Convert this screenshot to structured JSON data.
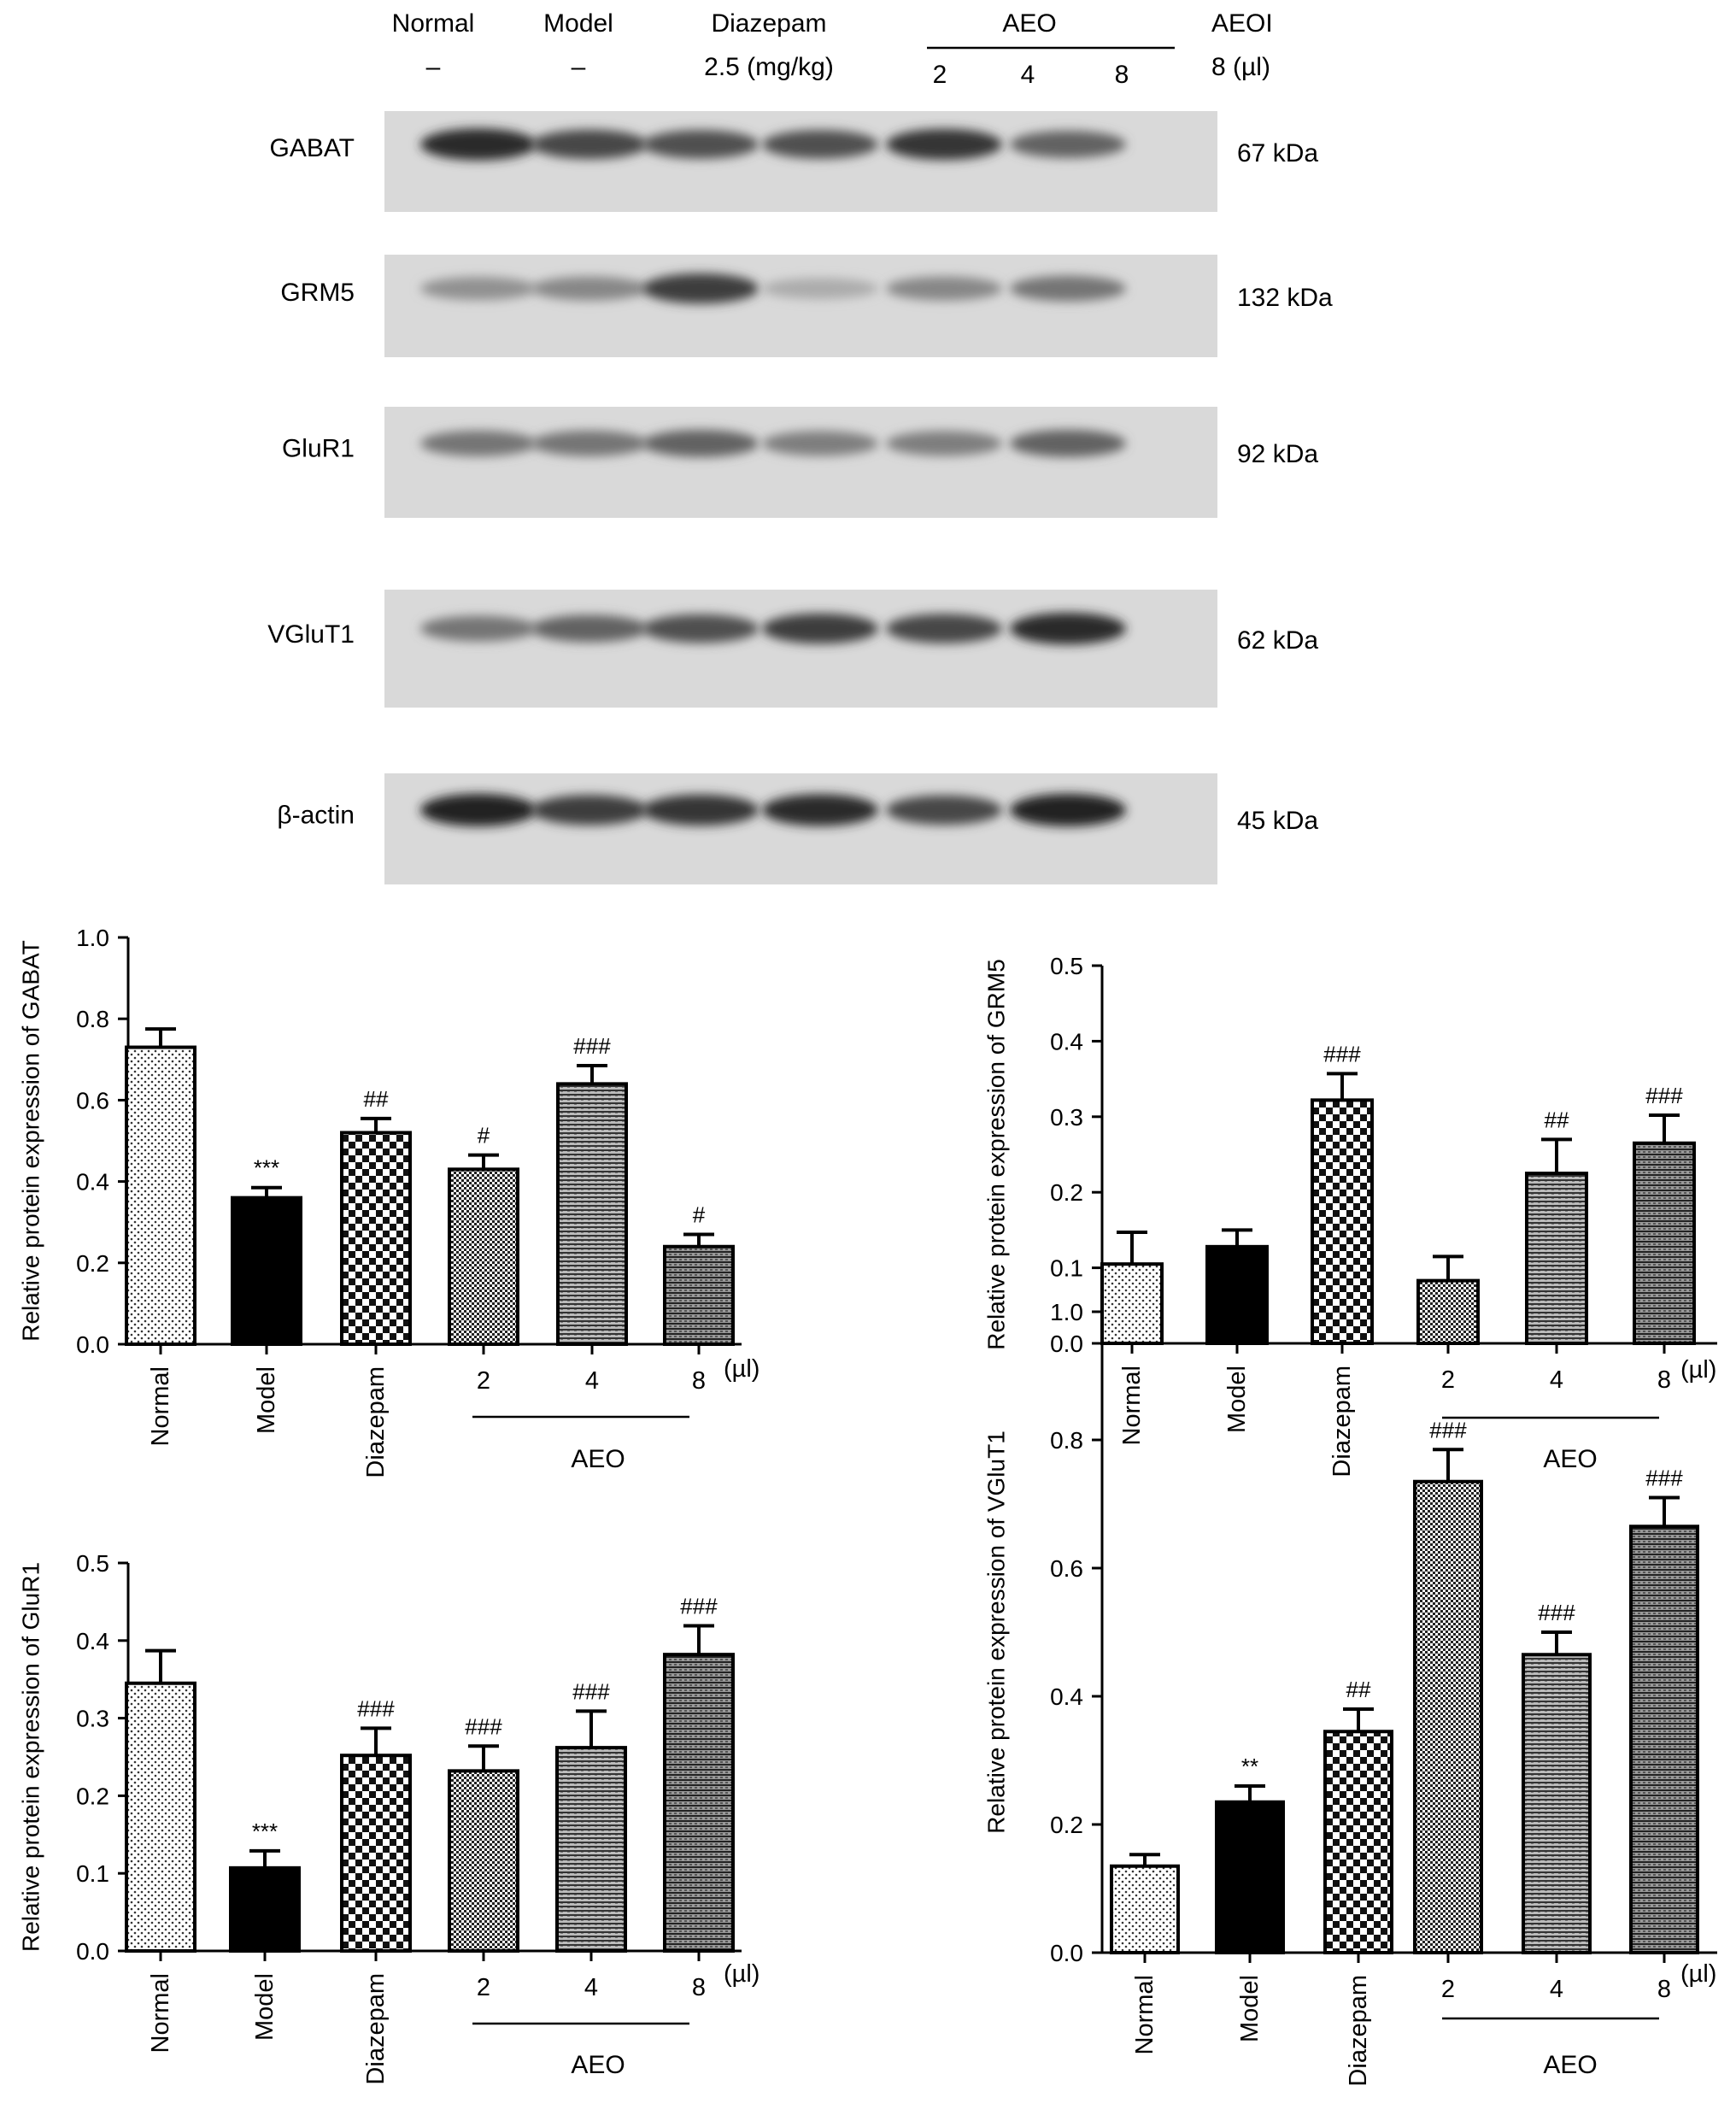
{
  "blot": {
    "header": {
      "col_normal": "Normal",
      "col_model": "Model",
      "col_diazepam": "Diazepam",
      "col_aeo": "AEO",
      "col_aeoi": "AEOI",
      "sub_normal": "–",
      "sub_model": "–",
      "sub_diazepam": "2.5 (mg/kg)",
      "sub_aeo_2": "2",
      "sub_aeo_4": "4",
      "sub_aeo_8": "8",
      "sub_aeoi": "8 (µl)"
    },
    "rows": [
      {
        "protein": "GABAT",
        "size": "67 kDa",
        "intensity": [
          0.85,
          0.7,
          0.65,
          0.65,
          0.8,
          0.55
        ]
      },
      {
        "protein": "GRM5",
        "size": "132 kDa",
        "intensity": [
          0.3,
          0.35,
          0.75,
          0.15,
          0.35,
          0.45
        ]
      },
      {
        "protein": "GluR1",
        "size": "92 kDa",
        "intensity": [
          0.45,
          0.45,
          0.55,
          0.4,
          0.4,
          0.55
        ]
      },
      {
        "protein": "VGluT1",
        "size": "62 kDa",
        "intensity": [
          0.45,
          0.55,
          0.65,
          0.75,
          0.7,
          0.85
        ]
      },
      {
        "protein": "β-actin",
        "size": "45 kDa",
        "intensity": [
          0.9,
          0.75,
          0.8,
          0.85,
          0.7,
          0.9
        ]
      }
    ]
  },
  "chart_data": [
    {
      "type": "bar",
      "ylabel": "Relative protein expression of GABAT",
      "ylim": [
        0,
        1.0
      ],
      "yticks": [
        "0.0",
        "0.2",
        "0.4",
        "0.6",
        "0.8",
        "1.0"
      ],
      "categories": [
        "Normal",
        "Model",
        "Diazepam",
        "2",
        "4",
        "8"
      ],
      "values": [
        0.73,
        0.36,
        0.52,
        0.43,
        0.64,
        0.24
      ],
      "errors": [
        0.045,
        0.025,
        0.035,
        0.035,
        0.045,
        0.03
      ],
      "annotations": [
        "",
        "***",
        "##",
        "#",
        "###",
        "#"
      ],
      "unit_label": "(µl)",
      "group_label": "AEO"
    },
    {
      "type": "bar",
      "ylabel": "Relative protein expression of GRM5",
      "ylim": [
        0,
        0.5
      ],
      "yticks": [
        "0.0",
        "0.1",
        "0.2",
        "0.3",
        "0.4",
        "0.5"
      ],
      "categories": [
        "Normal",
        "Model",
        "Diazepam",
        "2",
        "4",
        "8"
      ],
      "values": [
        0.105,
        0.128,
        0.322,
        0.083,
        0.225,
        0.265
      ],
      "errors": [
        0.042,
        0.022,
        0.035,
        0.032,
        0.045,
        0.037
      ],
      "annotations": [
        "",
        "",
        "###",
        "",
        "##",
        "###"
      ],
      "unit_label": "(µl)",
      "group_label": "AEO"
    },
    {
      "type": "bar",
      "ylabel": "Relative protein expression of GluR1",
      "ylim": [
        0,
        0.5
      ],
      "yticks": [
        "0.0",
        "0.1",
        "0.2",
        "0.3",
        "0.4",
        "0.5"
      ],
      "categories": [
        "Normal",
        "Model",
        "Diazepam",
        "2",
        "4",
        "8"
      ],
      "values": [
        0.345,
        0.107,
        0.252,
        0.232,
        0.262,
        0.382
      ],
      "errors": [
        0.042,
        0.022,
        0.035,
        0.032,
        0.047,
        0.037
      ],
      "annotations": [
        "",
        "***",
        "###",
        "###",
        "###",
        "###"
      ],
      "unit_label": "(µl)",
      "group_label": "AEO"
    },
    {
      "type": "bar",
      "ylabel": "Relative protein expression of VGluT1",
      "ylim": [
        0,
        1.0
      ],
      "yticks": [
        "0.0",
        "0.2",
        "0.4",
        "0.6",
        "0.8",
        "1.0"
      ],
      "categories": [
        "Normal",
        "Model",
        "Diazepam",
        "2",
        "4",
        "8"
      ],
      "values": [
        0.135,
        0.235,
        0.345,
        0.735,
        0.465,
        0.665
      ],
      "errors": [
        0.018,
        0.025,
        0.035,
        0.05,
        0.035,
        0.045
      ],
      "annotations": [
        "",
        "**",
        "##",
        "###",
        "###",
        "###"
      ],
      "unit_label": "(µl)",
      "group_label": "AEO"
    }
  ]
}
